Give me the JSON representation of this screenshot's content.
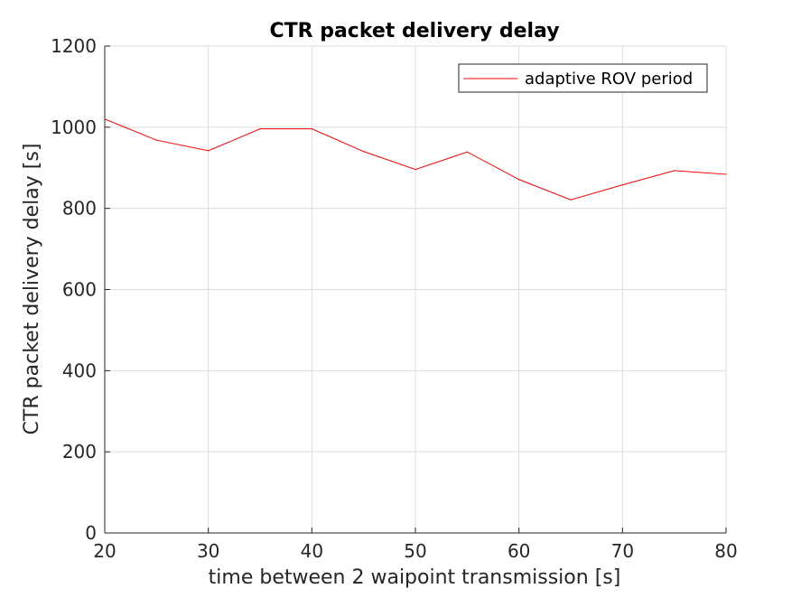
{
  "chart_data": {
    "type": "line",
    "title": "CTR packet delivery delay",
    "xlabel": "time between 2 waipoint transmission [s]",
    "ylabel": "CTR packet delivery delay [s]",
    "xlim": [
      20,
      80
    ],
    "ylim": [
      0,
      1200
    ],
    "xticks": [
      20,
      30,
      40,
      50,
      60,
      70,
      80
    ],
    "yticks": [
      0,
      200,
      400,
      600,
      800,
      1000,
      1200
    ],
    "grid": true,
    "legend_position": "top-right",
    "series": [
      {
        "name": "adaptive ROV period",
        "color": "#ff0000",
        "x": [
          20,
          25,
          30,
          35,
          40,
          45,
          50,
          55,
          60,
          65,
          70,
          75,
          80
        ],
        "y": [
          1020,
          968,
          942,
          996,
          996,
          940,
          896,
          939,
          871,
          821,
          858,
          893,
          884
        ]
      }
    ]
  }
}
